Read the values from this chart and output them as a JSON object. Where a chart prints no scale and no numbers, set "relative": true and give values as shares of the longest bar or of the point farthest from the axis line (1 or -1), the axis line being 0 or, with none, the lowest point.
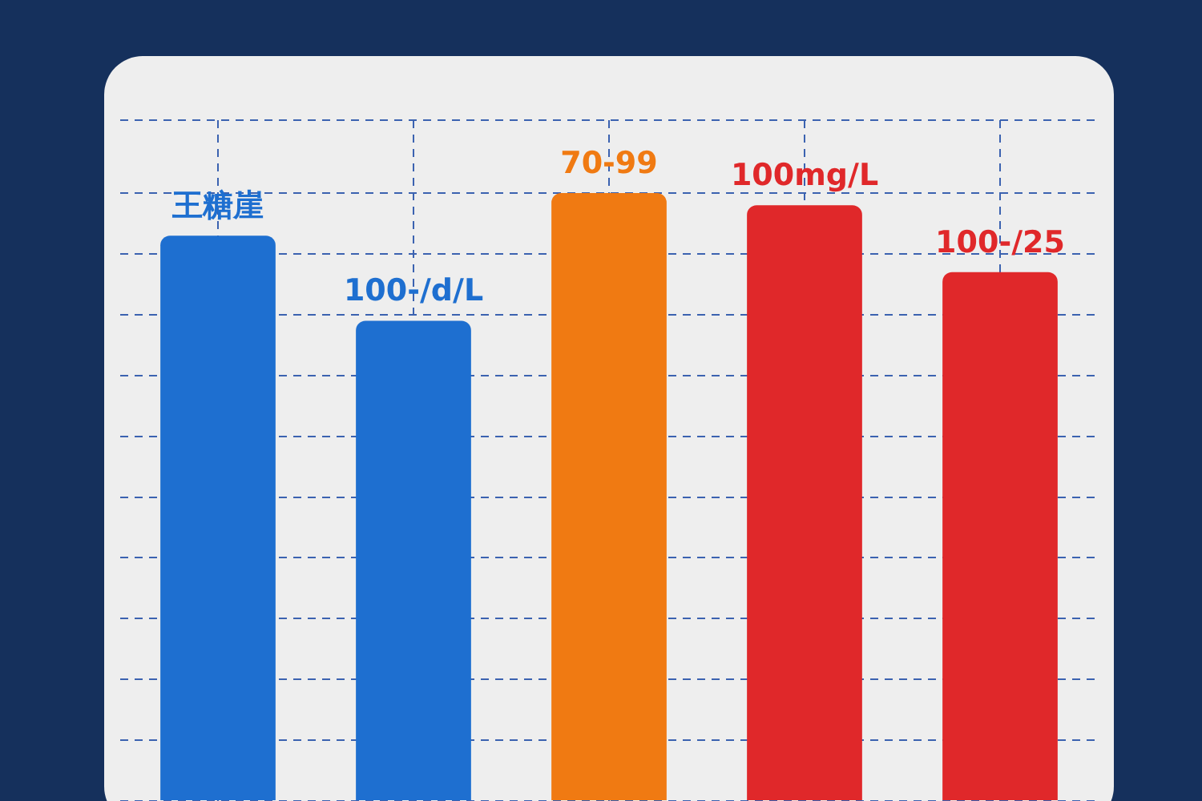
{
  "chart_data": {
    "type": "bar",
    "relative": true,
    "categories": [
      null,
      null,
      null,
      null,
      null
    ],
    "values": [
      0.93,
      0.79,
      1,
      0.98,
      0.87
    ],
    "colors": [
      "#1e6fd0",
      "#1e6fd0",
      "#f07a12",
      "#e0282a",
      "#e0282a"
    ],
    "annotations": [
      "王糖崖",
      "100-/d/L",
      "70-99",
      "100mg/L",
      "100-/25"
    ],
    "grid": true,
    "legend": false
  }
}
